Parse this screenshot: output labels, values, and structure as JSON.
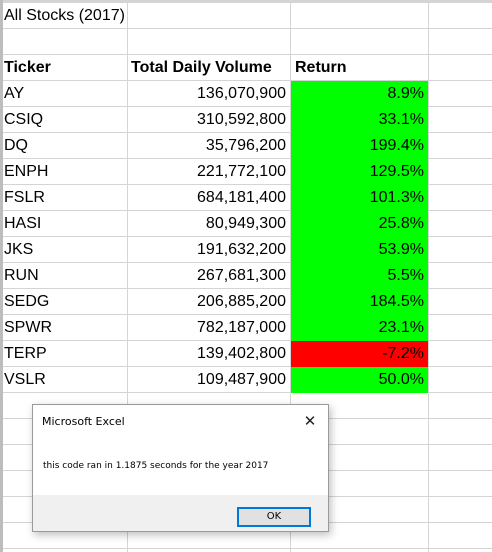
{
  "sheet": {
    "title": "All Stocks (2017)",
    "headers": {
      "ticker": "Ticker",
      "volume": "Total Daily Volume",
      "return": "Return"
    },
    "rows": [
      {
        "ticker": "AY",
        "volume": "136,070,900",
        "return": "8.9%",
        "status": "positive"
      },
      {
        "ticker": "CSIQ",
        "volume": "310,592,800",
        "return": "33.1%",
        "status": "positive"
      },
      {
        "ticker": "DQ",
        "volume": "35,796,200",
        "return": "199.4%",
        "status": "positive"
      },
      {
        "ticker": "ENPH",
        "volume": "221,772,100",
        "return": "129.5%",
        "status": "positive"
      },
      {
        "ticker": "FSLR",
        "volume": "684,181,400",
        "return": "101.3%",
        "status": "positive"
      },
      {
        "ticker": "HASI",
        "volume": "80,949,300",
        "return": "25.8%",
        "status": "positive"
      },
      {
        "ticker": "JKS",
        "volume": "191,632,200",
        "return": "53.9%",
        "status": "positive"
      },
      {
        "ticker": "RUN",
        "volume": "267,681,300",
        "return": "5.5%",
        "status": "positive"
      },
      {
        "ticker": "SEDG",
        "volume": "206,885,200",
        "return": "184.5%",
        "status": "positive"
      },
      {
        "ticker": "SPWR",
        "volume": "782,187,000",
        "return": "23.1%",
        "status": "positive"
      },
      {
        "ticker": "TERP",
        "volume": "139,402,800",
        "return": "-7.2%",
        "status": "negative"
      },
      {
        "ticker": "VSLR",
        "volume": "109,487,900",
        "return": "50.0%",
        "status": "positive"
      }
    ]
  },
  "colors": {
    "positive": "#00ff00",
    "negative": "#ff0000",
    "gridline": "#d4d4d4"
  },
  "dialog": {
    "title": "Microsoft Excel",
    "message": "this code ran in 1.1875 seconds for the year 2017",
    "ok_label": "OK",
    "close_icon": "close-icon"
  }
}
